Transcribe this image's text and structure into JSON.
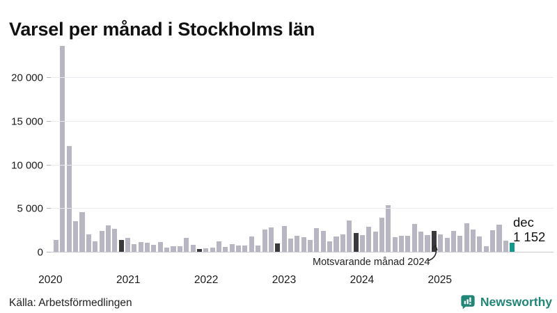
{
  "title": "Varsel per månad i Stockholms län",
  "source": "Källa: Arbetsförmedlingen",
  "brand": {
    "name": "Newsworthy",
    "color": "#218578"
  },
  "annotation": {
    "text": "Motsvarande månad 2024",
    "target_index": 58
  },
  "current_label": {
    "month": "dec",
    "value": "1 152"
  },
  "colors": {
    "bar_default": "#b9b6c4",
    "bar_december": "#3a393b",
    "bar_current": "#159889",
    "grid": "#eceaf1",
    "axis": "#c9c8d0",
    "brand_teal": "#218578"
  },
  "chart_data": {
    "type": "bar",
    "title": "Varsel per månad i Stockholms län",
    "xlabel": "",
    "ylabel": "",
    "grid": true,
    "legend": false,
    "ylim": [
      0,
      24150
    ],
    "yticks": [
      0,
      5000,
      10000,
      15000,
      20000
    ],
    "ytick_labels": [
      "0",
      "5 000",
      "10 000",
      "15 000",
      "20 000"
    ],
    "xtick_labels": [
      "2020",
      "2021",
      "2022",
      "2023",
      "2024",
      "2025"
    ],
    "x_start": "2020-02",
    "x_end": "2025-12",
    "x": [
      "2020-02",
      "2020-03",
      "2020-04",
      "2020-05",
      "2020-06",
      "2020-07",
      "2020-08",
      "2020-09",
      "2020-10",
      "2020-11",
      "2020-12",
      "2021-01",
      "2021-02",
      "2021-03",
      "2021-04",
      "2021-05",
      "2021-06",
      "2021-07",
      "2021-08",
      "2021-09",
      "2021-10",
      "2021-11",
      "2021-12",
      "2022-01",
      "2022-02",
      "2022-03",
      "2022-04",
      "2022-05",
      "2022-06",
      "2022-07",
      "2022-08",
      "2022-09",
      "2022-10",
      "2022-11",
      "2022-12",
      "2023-01",
      "2023-02",
      "2023-03",
      "2023-04",
      "2023-05",
      "2023-06",
      "2023-07",
      "2023-08",
      "2023-09",
      "2023-10",
      "2023-11",
      "2023-12",
      "2024-01",
      "2024-02",
      "2024-03",
      "2024-04",
      "2024-05",
      "2024-06",
      "2024-07",
      "2024-08",
      "2024-09",
      "2024-10",
      "2024-11",
      "2024-12",
      "2025-01",
      "2025-02",
      "2025-03",
      "2025-04",
      "2025-05",
      "2025-06",
      "2025-07",
      "2025-08",
      "2025-09",
      "2025-10",
      "2025-11",
      "2025-12"
    ],
    "values": [
      1450,
      23700,
      12200,
      3600,
      4650,
      2050,
      1300,
      2450,
      3100,
      2700,
      1450,
      1700,
      950,
      1200,
      1150,
      900,
      1200,
      580,
      690,
      690,
      1650,
      850,
      420,
      500,
      560,
      1250,
      650,
      980,
      770,
      820,
      1800,
      820,
      2600,
      2880,
      1030,
      3000,
      1560,
      1880,
      1750,
      1430,
      2800,
      2490,
      1300,
      1830,
      2090,
      3650,
      2200,
      2000,
      2940,
      2380,
      3970,
      5400,
      1770,
      1930,
      1930,
      3250,
      2380,
      1980,
      2460,
      2060,
      1670,
      2460,
      1900,
      3330,
      2620,
      1830,
      710,
      2540,
      3180,
      1350,
      1152
    ],
    "december_highlight_indices": [
      10,
      22,
      34,
      46,
      58
    ],
    "current_bar_index": 70,
    "current_value": 1152,
    "year_label_slots": [
      -1,
      11,
      23,
      35,
      47,
      59
    ]
  }
}
